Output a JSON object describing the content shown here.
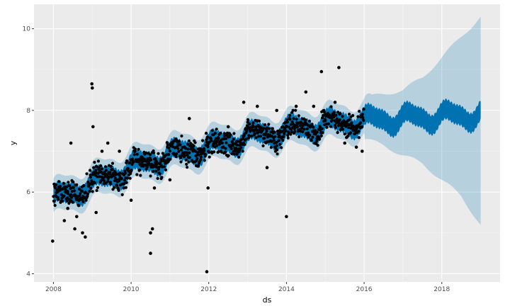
{
  "chart_data": {
    "type": "line",
    "title": "",
    "xlabel": "ds",
    "ylabel": "y",
    "xlim": [
      2007.5,
      2019.5
    ],
    "ylim": [
      3.8,
      10.6
    ],
    "x_ticks": [
      2008,
      2010,
      2012,
      2014,
      2016,
      2018
    ],
    "x_tick_labels": [
      "2008",
      "2010",
      "2012",
      "2014",
      "2016",
      "2018"
    ],
    "y_ticks": [
      4,
      6,
      8,
      10
    ],
    "y_tick_labels": [
      "4",
      "6",
      "8",
      "10"
    ],
    "grid": true,
    "history_end": 2016.0,
    "forecast_end": 2019.0,
    "series": [
      {
        "kind": "trend",
        "x": [
          2008.0,
          2009.0,
          2010.0,
          2011.0,
          2012.0,
          2013.0,
          2014.0,
          2015.0,
          2016.0,
          2017.0,
          2018.0,
          2019.0
        ],
        "values": [
          5.8,
          6.2,
          6.6,
          6.9,
          7.1,
          7.35,
          7.5,
          7.65,
          7.75,
          7.8,
          7.85,
          7.9
        ]
      },
      {
        "kind": "uncertainty_interval",
        "x": [
          2016.0,
          2016.5,
          2017.0,
          2017.5,
          2018.0,
          2018.5,
          2019.0
        ],
        "lower": [
          7.3,
          7.15,
          6.9,
          6.7,
          6.3,
          5.9,
          5.2
        ],
        "upper": [
          8.3,
          8.4,
          8.5,
          8.8,
          9.3,
          9.8,
          10.3
        ]
      },
      {
        "kind": "observed",
        "points": [
          [
            2007.98,
            4.8
          ],
          [
            2008.28,
            5.3
          ],
          [
            2008.37,
            5.6
          ],
          [
            2008.45,
            7.2
          ],
          [
            2008.55,
            5.1
          ],
          [
            2008.6,
            5.4
          ],
          [
            2008.75,
            5.0
          ],
          [
            2008.82,
            4.9
          ],
          [
            2008.9,
            6.2
          ],
          [
            2008.99,
            8.65
          ],
          [
            2009.0,
            8.55
          ],
          [
            2009.02,
            7.6
          ],
          [
            2009.1,
            5.5
          ],
          [
            2009.25,
            7.0
          ],
          [
            2009.4,
            7.2
          ],
          [
            2009.7,
            7.0
          ],
          [
            2010.0,
            5.8
          ],
          [
            2010.5,
            4.5
          ],
          [
            2010.5,
            5.0
          ],
          [
            2010.55,
            5.1
          ],
          [
            2010.6,
            6.1
          ],
          [
            2011.0,
            6.3
          ],
          [
            2011.5,
            7.8
          ],
          [
            2011.95,
            4.05
          ],
          [
            2011.98,
            6.1
          ],
          [
            2012.5,
            7.6
          ],
          [
            2012.9,
            8.2
          ],
          [
            2013.25,
            8.1
          ],
          [
            2013.5,
            6.6
          ],
          [
            2013.75,
            8.0
          ],
          [
            2014.0,
            5.4
          ],
          [
            2014.25,
            8.1
          ],
          [
            2014.5,
            8.45
          ],
          [
            2014.7,
            8.1
          ],
          [
            2014.9,
            8.95
          ],
          [
            2015.25,
            8.2
          ],
          [
            2015.35,
            9.05
          ],
          [
            2015.5,
            7.2
          ],
          [
            2015.8,
            7.1
          ],
          [
            2015.95,
            7.0
          ]
        ]
      }
    ]
  }
}
